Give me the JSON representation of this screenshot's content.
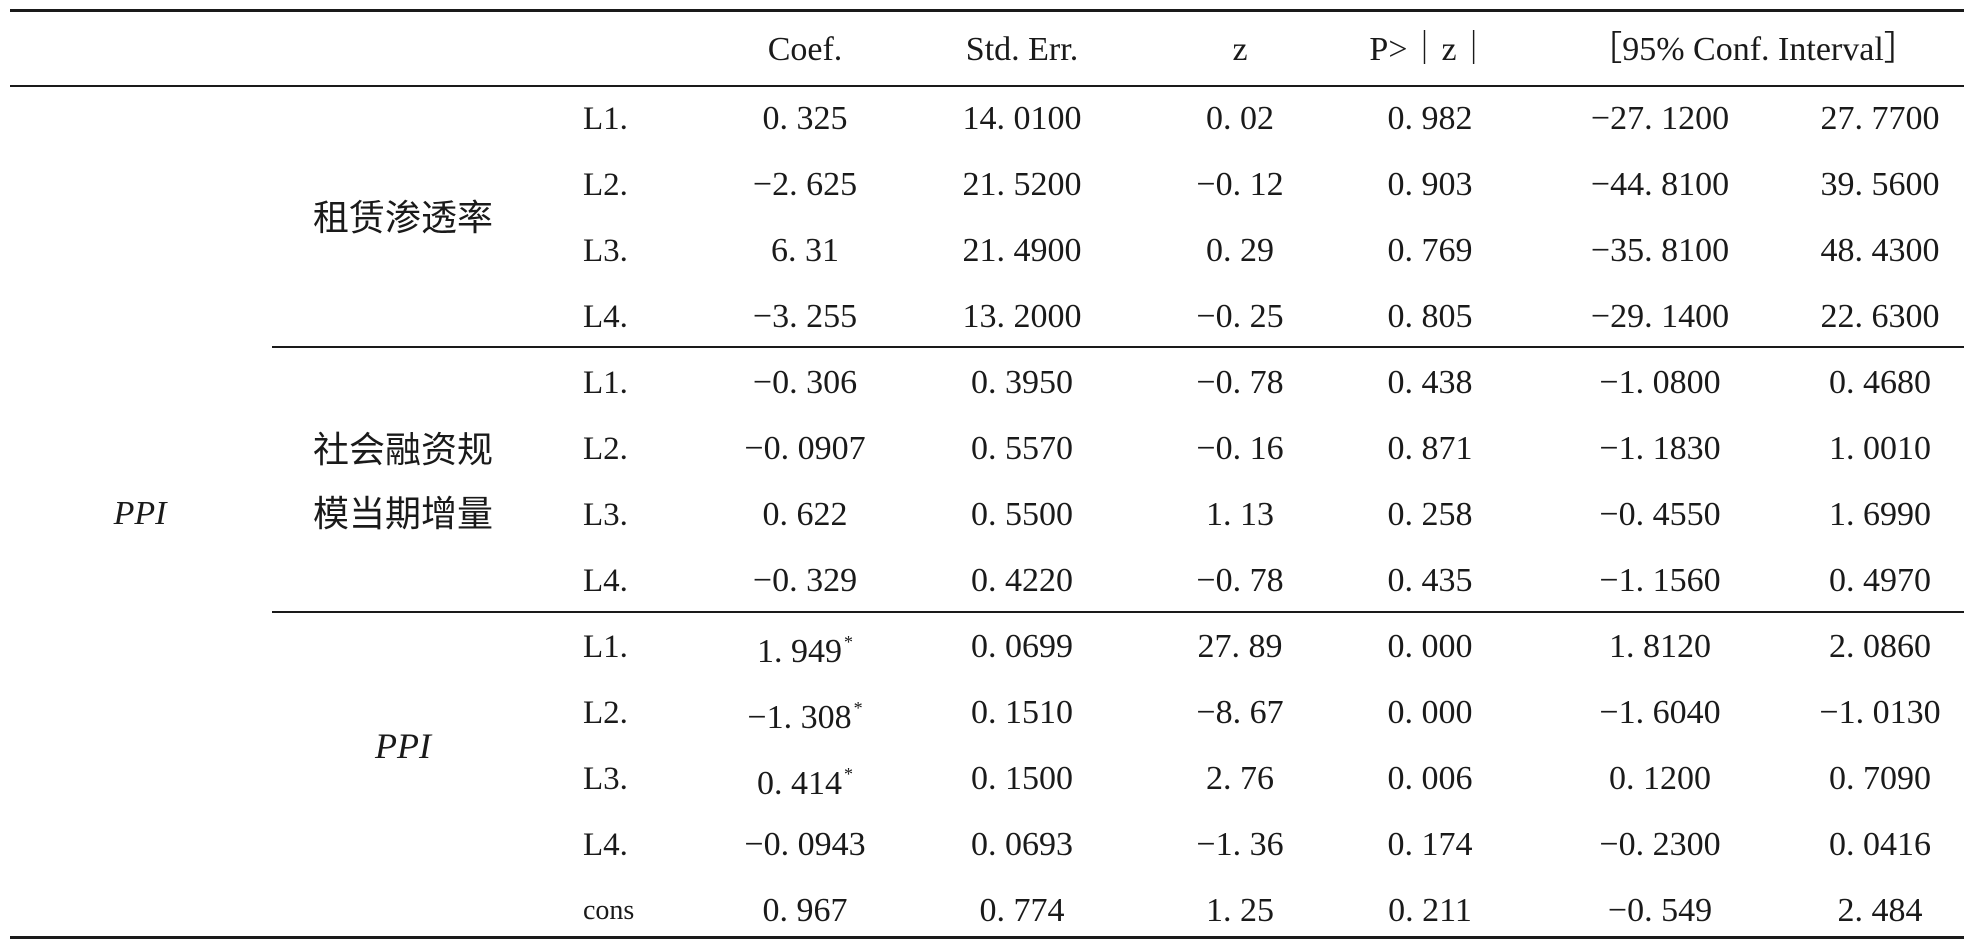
{
  "header": {
    "columns": [
      "Coef.",
      "Std. Err.",
      "z",
      "P>｜z｜",
      "［95% Conf. Interval］"
    ]
  },
  "dependent_variable": "PPI",
  "groups": [
    {
      "label_lines": [
        "租赁渗透率"
      ],
      "rows": [
        {
          "lag": "L1.",
          "coef": "0. 325",
          "star": "",
          "se": "14. 0100",
          "z": "0. 02",
          "p": "0. 982",
          "ci_low": "−27. 1200",
          "ci_high": "27. 7700"
        },
        {
          "lag": "L2.",
          "coef": "−2. 625",
          "star": "",
          "se": "21. 5200",
          "z": "−0. 12",
          "p": "0. 903",
          "ci_low": "−44. 8100",
          "ci_high": "39. 5600"
        },
        {
          "lag": "L3.",
          "coef": "6. 31",
          "star": "",
          "se": "21. 4900",
          "z": "0. 29",
          "p": "0. 769",
          "ci_low": "−35. 8100",
          "ci_high": "48. 4300"
        },
        {
          "lag": "L4.",
          "coef": "−3. 255",
          "star": "",
          "se": "13. 2000",
          "z": "−0. 25",
          "p": "0. 805",
          "ci_low": "−29. 1400",
          "ci_high": "22. 6300"
        }
      ]
    },
    {
      "label_lines": [
        "社会融资规",
        "模当期增量"
      ],
      "rows": [
        {
          "lag": "L1.",
          "coef": "−0. 306",
          "star": "",
          "se": "0. 3950",
          "z": "−0. 78",
          "p": "0. 438",
          "ci_low": "−1. 0800",
          "ci_high": "0. 4680"
        },
        {
          "lag": "L2.",
          "coef": "−0. 0907",
          "star": "",
          "se": "0. 5570",
          "z": "−0. 16",
          "p": "0. 871",
          "ci_low": "−1. 1830",
          "ci_high": "1. 0010"
        },
        {
          "lag": "L3.",
          "coef": "0. 622",
          "star": "",
          "se": "0. 5500",
          "z": "1. 13",
          "p": "0. 258",
          "ci_low": "−0. 4550",
          "ci_high": "1. 6990"
        },
        {
          "lag": "L4.",
          "coef": "−0. 329",
          "star": "",
          "se": "0. 4220",
          "z": "−0. 78",
          "p": "0. 435",
          "ci_low": "−1. 1560",
          "ci_high": "0. 4970"
        }
      ]
    },
    {
      "label_lines": [
        "PPI"
      ],
      "rows": [
        {
          "lag": "L1.",
          "coef": "1. 949",
          "star": "*",
          "se": "0. 0699",
          "z": "27. 89",
          "p": "0. 000",
          "ci_low": "1. 8120",
          "ci_high": "2. 0860"
        },
        {
          "lag": "L2.",
          "coef": "−1. 308",
          "star": "*",
          "se": "0. 1510",
          "z": "−8. 67",
          "p": "0. 000",
          "ci_low": "−1. 6040",
          "ci_high": "−1. 0130"
        },
        {
          "lag": "L3.",
          "coef": "0. 414",
          "star": "*",
          "se": "0. 1500",
          "z": "2. 76",
          "p": "0. 006",
          "ci_low": "0. 1200",
          "ci_high": "0. 7090"
        },
        {
          "lag": "L4.",
          "coef": "−0. 0943",
          "star": "",
          "se": "0. 0693",
          "z": "−1. 36",
          "p": "0. 174",
          "ci_low": "−0. 2300",
          "ci_high": "0. 0416"
        },
        {
          "lag": "cons",
          "coef": "0. 967",
          "star": "",
          "se": "0. 774",
          "z": "1. 25",
          "p": "0. 211",
          "ci_low": "−0. 549",
          "ci_high": "2.  484"
        }
      ]
    }
  ]
}
